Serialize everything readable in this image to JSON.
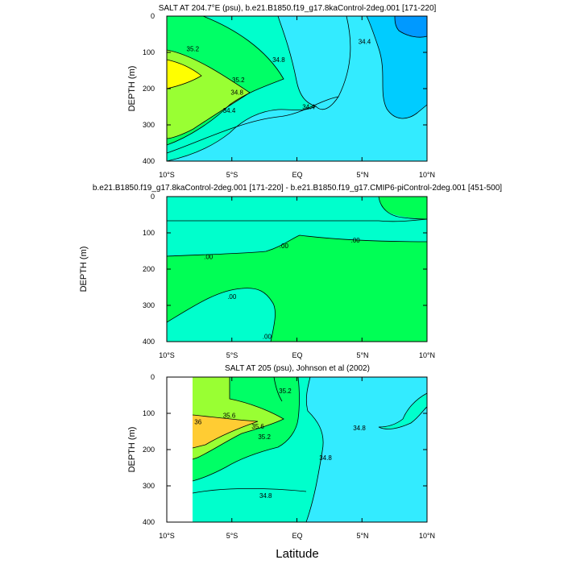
{
  "figure": {
    "xlabel": "Latitude"
  },
  "colors": {
    "c34_0": "#00e6ff",
    "c34_4": "#33ebff",
    "c34_8": "#00ffcc",
    "c35_2": "#00ff66",
    "c35_6": "#99ff33",
    "c36_0": "#ffff00",
    "c36b": "#ffcc33",
    "dark1": "#0099ff",
    "dark2": "#33bbff",
    "diffA": "#00ffcc",
    "diffB": "#00ff55"
  },
  "chart_data": [
    {
      "type": "contour",
      "title": "SALT AT 204.7°E (psu), b.e21.B1850.f19_g17.8kaControl-2deg.001 [171-220]",
      "ylabel": "DEPTH (m)",
      "xlim": [
        -10,
        10
      ],
      "ylim": [
        0,
        400
      ],
      "y_reversed": true,
      "xticks": [
        "10°S",
        "5°S",
        "EQ",
        "5°N",
        "10°N"
      ],
      "yticks": [
        "0",
        "100",
        "200",
        "300",
        "400"
      ],
      "contour_labels": [
        {
          "text": "35.2",
          "lat": -8.0,
          "depth": 90
        },
        {
          "text": "35.2",
          "lat": -4.5,
          "depth": 176
        },
        {
          "text": "34.8",
          "lat": -4.6,
          "depth": 210
        },
        {
          "text": "34.4",
          "lat": -5.2,
          "depth": 260
        },
        {
          "text": "34.8",
          "lat": -1.4,
          "depth": 120
        },
        {
          "text": "34.4",
          "lat": 0.9,
          "depth": 250
        },
        {
          "text": "34.4",
          "lat": 5.2,
          "depth": 70
        }
      ]
    },
    {
      "type": "contour",
      "title": "b.e21.B1850.f19_g17.8kaControl-2deg.001 [171-220] - b.e21.B1850.f19_g17.CMIP6-piControl-2deg.001 [451-500]",
      "ylabel": "DEPTH (m)",
      "xlim": [
        -10,
        10
      ],
      "ylim": [
        0,
        400
      ],
      "y_reversed": true,
      "xticks": [
        "10°S",
        "5°S",
        "EQ",
        "5°N",
        "10°N"
      ],
      "yticks": [
        "0",
        "100",
        "200",
        "300",
        "400"
      ],
      "contour_labels": [
        {
          "text": ".00",
          "lat": -6.8,
          "depth": 165
        },
        {
          "text": ".00",
          "lat": -1.0,
          "depth": 135
        },
        {
          "text": ".00",
          "lat": 4.5,
          "depth": 120
        },
        {
          "text": ".00",
          "lat": -5.0,
          "depth": 275
        },
        {
          "text": ".00",
          "lat": -2.3,
          "depth": 385
        }
      ]
    },
    {
      "type": "contour",
      "title": "SALT AT 205 (psu), Johnson et al (2002)",
      "ylabel": "DEPTH (m)",
      "xlim": [
        -10,
        10
      ],
      "ylim": [
        0,
        400
      ],
      "y_reversed": true,
      "xticks": [
        "10°S",
        "5°S",
        "EQ",
        "5°N",
        "10°N"
      ],
      "yticks": [
        "0",
        "100",
        "200",
        "300",
        "400"
      ],
      "data_start_lat": -8.0,
      "contour_labels": [
        {
          "text": "35.2",
          "lat": -0.9,
          "depth": 38
        },
        {
          "text": "35.6",
          "lat": -5.2,
          "depth": 105
        },
        {
          "text": "36",
          "lat": -7.6,
          "depth": 123
        },
        {
          "text": "35.6",
          "lat": -3.0,
          "depth": 136
        },
        {
          "text": "35.2",
          "lat": -2.5,
          "depth": 164
        },
        {
          "text": "34.8",
          "lat": 4.8,
          "depth": 140
        },
        {
          "text": "34.8",
          "lat": 2.2,
          "depth": 222
        },
        {
          "text": "34.8",
          "lat": -2.4,
          "depth": 327
        }
      ]
    }
  ]
}
